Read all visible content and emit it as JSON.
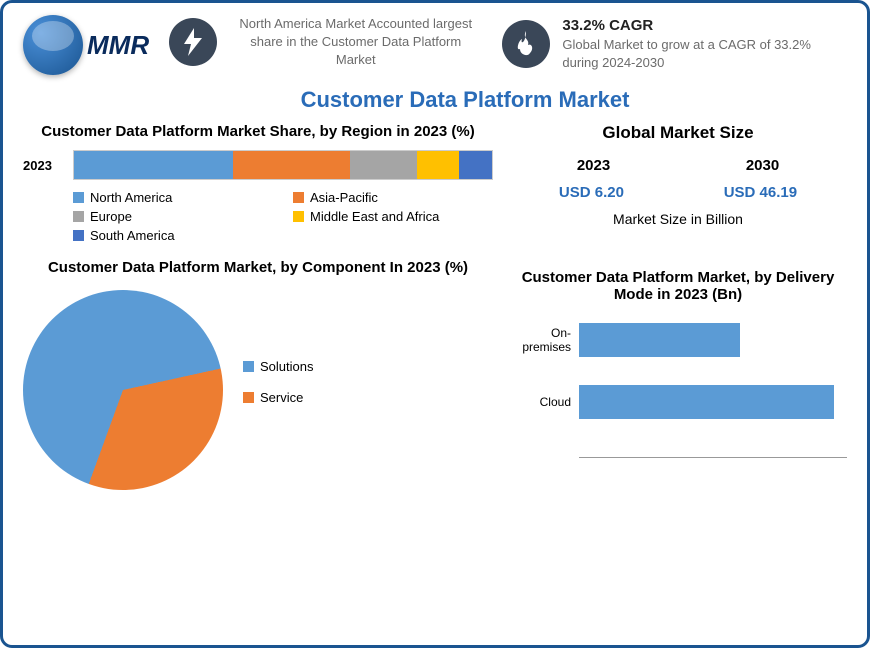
{
  "logo_text": "MMR",
  "header": {
    "info1": "North America Market Accounted largest share in the Customer Data Platform Market",
    "cagr_title": "33.2% CAGR",
    "cagr_text": "Global Market to grow at a CAGR of 33.2% during 2024-2030"
  },
  "main_title": "Customer Data Platform Market",
  "region_chart": {
    "title": "Customer Data Platform Market Share, by Region in 2023 (%)",
    "year_label": "2023",
    "segments": [
      {
        "name": "North America",
        "share": 38,
        "color": "#5b9bd5"
      },
      {
        "name": "Asia-Pacific",
        "share": 28,
        "color": "#ed7d31"
      },
      {
        "name": "Europe",
        "share": 16,
        "color": "#a5a5a5"
      },
      {
        "name": "Middle East and Africa",
        "share": 10,
        "color": "#ffc000"
      },
      {
        "name": "South America",
        "share": 8,
        "color": "#4472c4"
      }
    ]
  },
  "market_size": {
    "title": "Global Market Size",
    "y1_label": "2023",
    "y2_label": "2030",
    "y1_value": "USD 6.20",
    "y2_value": "USD 46.19",
    "subtitle": "Market Size in Billion"
  },
  "pie_chart": {
    "title": "Customer Data Platform Market, by Component In 2023 (%)",
    "slices": [
      {
        "name": "Solutions",
        "pct": 66,
        "color": "#5b9bd5"
      },
      {
        "name": "Service",
        "pct": 34,
        "color": "#ed7d31"
      }
    ]
  },
  "hbar_chart": {
    "title": "Customer Data Platform Market, by Delivery Mode in 2023 (Bn)",
    "bars": [
      {
        "label": "On-premises",
        "value": 2.4,
        "color": "#5b9bd5"
      },
      {
        "label": "Cloud",
        "value": 3.8,
        "color": "#5b9bd5"
      }
    ],
    "max": 4.0
  },
  "colors": {
    "brand_border": "#1a5490",
    "title_blue": "#2a6cb8",
    "icon_bg": "#3a4758"
  }
}
